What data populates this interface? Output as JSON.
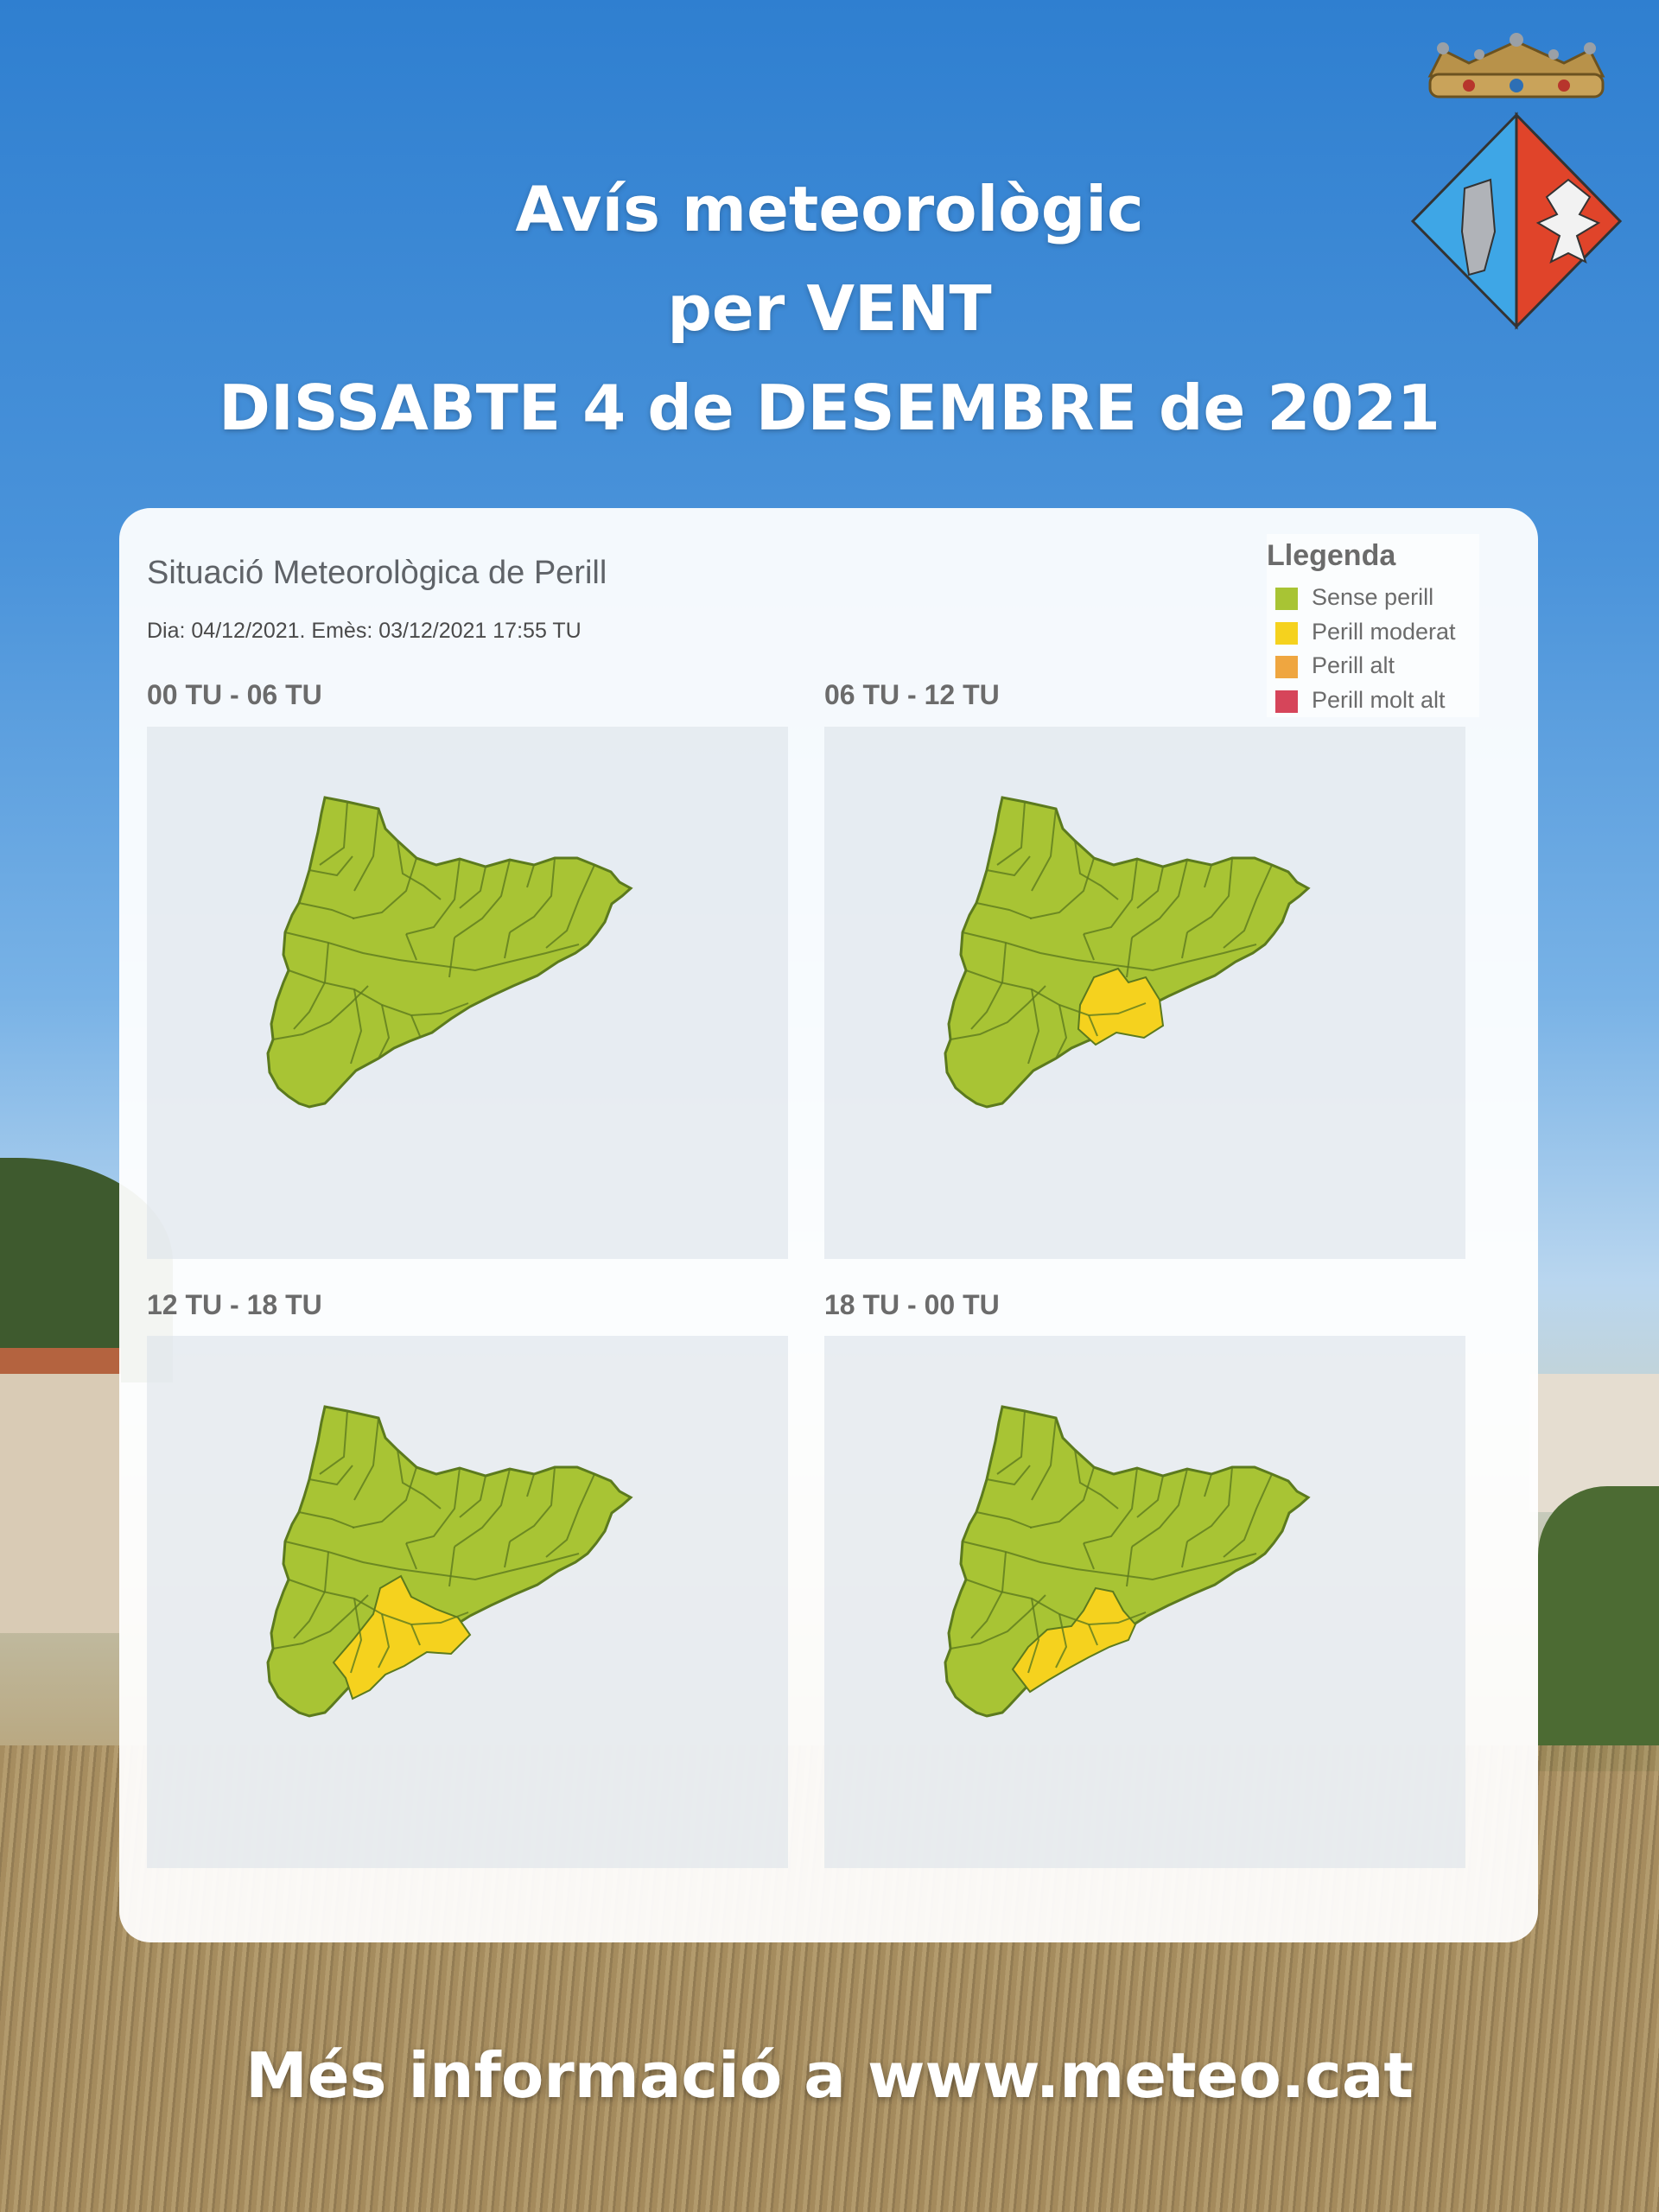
{
  "title": {
    "line1": "Avís meteorològic",
    "line2": "per VENT",
    "line3": "DISSABTE 4 de DESEMBRE de 2021"
  },
  "panel": {
    "title": "Situació Meteorològica de Perill",
    "subtitle": "Dia: 04/12/2021. Emès: 03/12/2021 17:55 TU"
  },
  "legend": {
    "title": "Llegenda",
    "items": [
      {
        "label": "Sense perill",
        "color": "#a8c434"
      },
      {
        "label": "Perill moderat",
        "color": "#f5d21e"
      },
      {
        "label": "Perill alt",
        "color": "#efa640"
      },
      {
        "label": "Perill molt alt",
        "color": "#d6455a"
      }
    ]
  },
  "maps": [
    {
      "label": "00 TU - 06 TU",
      "moderate_zone": "none"
    },
    {
      "label": "06 TU - 12 TU",
      "moderate_zone": "central"
    },
    {
      "label": "12 TU - 18 TU",
      "moderate_zone": "southwest"
    },
    {
      "label": "18 TU - 00 TU",
      "moderate_zone": "south-central"
    }
  ],
  "footer": "Més informació a www.meteo.cat",
  "colors": {
    "no_danger": "#a8c434",
    "moderate": "#f5d21e",
    "border": "#5c7a1e"
  }
}
